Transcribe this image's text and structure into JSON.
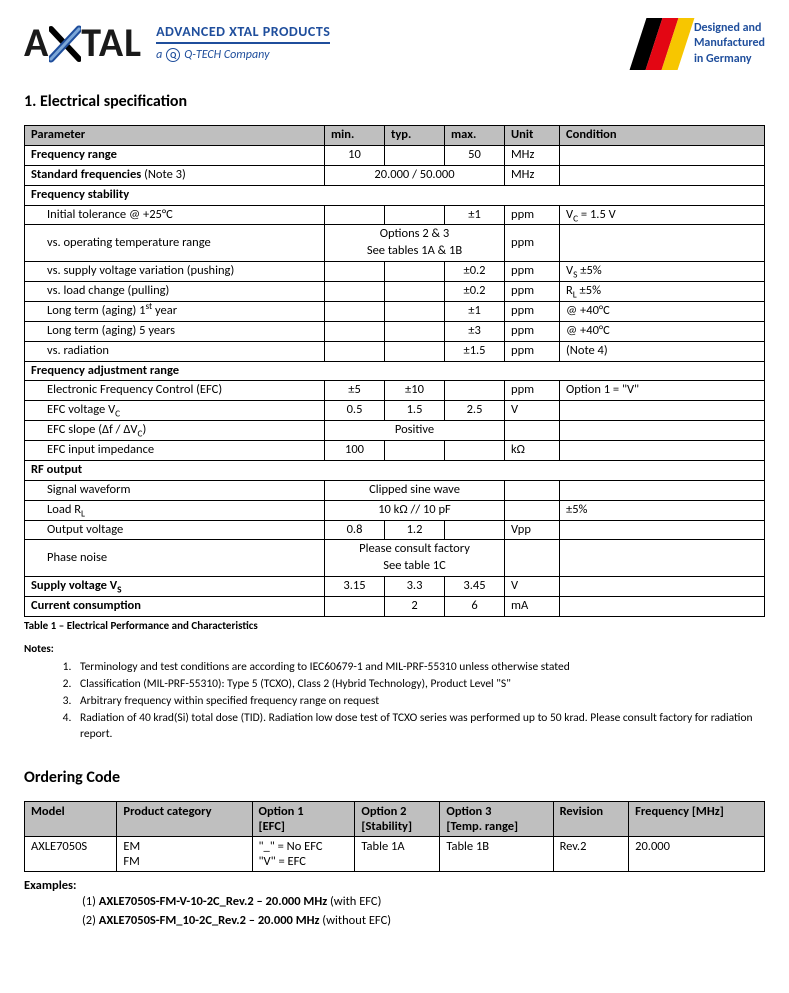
{
  "header": {
    "logo_text_a": "A",
    "logo_text_tal": "TAL",
    "adv_line": "ADVANCED XTAL PRODUCTS",
    "sub_prefix": "a",
    "qtech_glyph": "⊕",
    "sub_company": "Q-TECH Company",
    "flag_colors": [
      "#000000",
      "#e30613",
      "#f7c600"
    ],
    "flag_text_l1": "Designed and",
    "flag_text_l2": "Manufactured",
    "flag_text_l3": "in Germany"
  },
  "section1_title": "1. Electrical specification",
  "spec_table": {
    "headers": [
      "Parameter",
      "min.",
      "typ.",
      "max.",
      "Unit",
      "Condition"
    ],
    "rows": [
      {
        "p": "Frequency range",
        "bold": true,
        "min": "10",
        "typ": "",
        "max": "50",
        "unit": "MHz",
        "cond": ""
      },
      {
        "p": "Standard frequencies",
        "note": " (Note 3)",
        "bold": true,
        "merge3": "20.000 / 50.000",
        "unit": "MHz",
        "cond": ""
      },
      {
        "p": "Frequency stability",
        "bold": true,
        "span_all": true
      },
      {
        "p": "Initial tolerance @ +25°C",
        "indent": true,
        "min": "",
        "typ": "",
        "max": "±1",
        "unit": "ppm",
        "cond_html": "V<sub>C</sub> = 1.5 V"
      },
      {
        "p": "vs. operating temperature range",
        "indent": true,
        "merge3_2line": [
          "Options 2 & 3",
          "See tables 1A & 1B"
        ],
        "unit": "ppm",
        "cond": ""
      },
      {
        "p": "vs. supply voltage variation (pushing)",
        "indent": true,
        "min": "",
        "typ": "",
        "max": "±0.2",
        "unit": "ppm",
        "cond_html": "V<sub>S</sub> ±5%"
      },
      {
        "p": "vs. load change (pulling)",
        "indent": true,
        "min": "",
        "typ": "",
        "max": "±0.2",
        "unit": "ppm",
        "cond_html": "R<sub>L</sub> ±5%"
      },
      {
        "p_html": "Long term (aging) 1<sup>st</sup> year",
        "indent": true,
        "min": "",
        "typ": "",
        "max": "±1",
        "unit": "ppm",
        "cond": "@ +40°C"
      },
      {
        "p": "Long term (aging) 5 years",
        "indent": true,
        "min": "",
        "typ": "",
        "max": "±3",
        "unit": "ppm",
        "cond": "@ +40°C"
      },
      {
        "p": "vs. radiation",
        "indent": true,
        "min": "",
        "typ": "",
        "max": "±1.5",
        "unit": "ppm",
        "cond": "(Note 4)"
      },
      {
        "p": "Frequency adjustment range",
        "bold": true,
        "span_all": true
      },
      {
        "p": "Electronic Frequency Control (EFC)",
        "indent": true,
        "min": "±5",
        "typ": "±10",
        "max": "",
        "unit": "ppm",
        "cond": "Option 1 = \"V\""
      },
      {
        "p_html": "EFC voltage V<sub>C</sub>",
        "indent": true,
        "min": "0.5",
        "typ": "1.5",
        "max": "2.5",
        "unit": "V",
        "cond": ""
      },
      {
        "p_html": "EFC slope (Δf / ΔV<sub>C</sub>)",
        "indent": true,
        "merge3": "Positive",
        "unit": "",
        "cond": ""
      },
      {
        "p": "EFC input impedance",
        "indent": true,
        "min": "100",
        "typ": "",
        "max": "",
        "unit": "kΩ",
        "cond": ""
      },
      {
        "p": "RF output",
        "bold": true,
        "span_all": true
      },
      {
        "p": "Signal waveform",
        "indent": true,
        "merge3": "Clipped sine wave",
        "unit": "",
        "cond": ""
      },
      {
        "p_html": "Load R<sub>L</sub>",
        "indent": true,
        "merge3": "10 kΩ // 10 pF",
        "unit": "",
        "cond": "±5%"
      },
      {
        "p": "Output voltage",
        "indent": true,
        "min": "0.8",
        "typ": "1.2",
        "max": "",
        "unit": "Vpp",
        "cond": ""
      },
      {
        "p": "Phase noise",
        "indent": true,
        "merge3_2line": [
          "Please consult factory",
          "See table 1C"
        ],
        "unit": "",
        "cond": ""
      },
      {
        "p_html": "Supply voltage V<sub>S</sub>",
        "bold": true,
        "min": "3.15",
        "typ": "3.3",
        "max": "3.45",
        "unit": "V",
        "cond": ""
      },
      {
        "p": "Current consumption",
        "bold": true,
        "min": "",
        "typ": "2",
        "max": "6",
        "unit": "mA",
        "cond": ""
      }
    ],
    "caption": "Table 1 – Electrical Performance and Characteristics"
  },
  "notes": {
    "heading": "Notes:",
    "items": [
      "Terminology and test conditions are according to IEC60679-1 and MIL-PRF-55310 unless otherwise stated",
      "Classification (MIL-PRF-55310): Type 5 (TCXO), Class 2 (Hybrid Technology), Product Level \"S\"",
      "Arbitrary frequency within specified frequency range on request",
      "Radiation of 40 krad(Si) total dose (TID). Radiation low dose test of TCXO series was performed up to 50 krad. Please consult factory for radiation report."
    ]
  },
  "ordering": {
    "title": "Ordering Code",
    "headers": [
      "Model",
      "Product category",
      "Option 1\n[EFC]",
      "Option 2\n[Stability]",
      "Option 3\n[Temp. range]",
      "Revision",
      "Frequency [MHz]"
    ],
    "row": {
      "model": "AXLE7050S",
      "cat1": "EM",
      "cat2": "FM",
      "opt1a": "\"_\" = No EFC",
      "opt1b": "\"V\" = EFC",
      "opt2": "Table 1A",
      "opt3": "Table 1B",
      "rev": "Rev.2",
      "freq": "20.000"
    },
    "examples_head": "Examples:",
    "ex1_num": "(1)  ",
    "ex1_bold": "AXLE7050S-FM-V-10-2C_Rev.2 – 20.000 MHz",
    "ex1_tail": " (with EFC)",
    "ex2_num": "(2)  ",
    "ex2_bold": "AXLE7050S-FM_10-2C_Rev.2 – 20.000 MHz",
    "ex2_tail": " (without EFC)"
  }
}
